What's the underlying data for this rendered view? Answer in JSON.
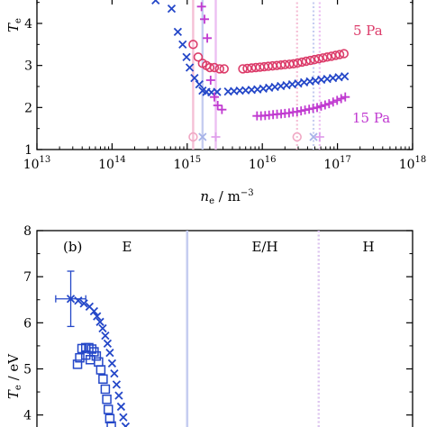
{
  "chart_data": [
    {
      "type": "scatter",
      "panel": "a",
      "xscale": "log",
      "xlim": [
        "1e13",
        "1e18"
      ],
      "ylim": [
        1,
        4.6
      ],
      "grid": false,
      "xlabel": {
        "main": "n",
        "sub": "e",
        "unit": " / m",
        "exp": "−3"
      },
      "ylabel": {
        "main": "T",
        "sub": "e"
      },
      "x_ticks": [
        {
          "value": "1e13",
          "base": "10",
          "exp": "13"
        },
        {
          "value": "1e14",
          "base": "10",
          "exp": "14"
        },
        {
          "value": "1e15",
          "base": "10",
          "exp": "15"
        },
        {
          "value": "1e16",
          "base": "10",
          "exp": "16"
        },
        {
          "value": "1e17",
          "base": "10",
          "exp": "17"
        },
        {
          "value": "1e18",
          "base": "10",
          "exp": "18"
        }
      ],
      "y_ticks": [
        "1",
        "2",
        "3",
        "4"
      ],
      "vertical_lines": [
        {
          "x": "1.2e15",
          "color": "#f5c0d6",
          "style": "solid"
        },
        {
          "x": "1.6e15",
          "color": "#c6cdf0",
          "style": "solid"
        },
        {
          "x": "2.4e15",
          "color": "#ecc0f2",
          "style": "solid"
        },
        {
          "x": "2.9e16",
          "color": "#f5c0d6",
          "style": "dotted"
        },
        {
          "x": "4.8e16",
          "color": "#c6cdf0",
          "style": "dotted"
        },
        {
          "x": "5.8e16",
          "color": "#ecc0f2",
          "style": "dotted"
        }
      ],
      "series": [
        {
          "name": "5 Pa",
          "marker": "circle",
          "color": "#dc3c6a",
          "points": [
            [
              "1.2e15",
              3.5
            ],
            [
              "1.4e15",
              3.2
            ],
            [
              "1.6e15",
              3.05
            ],
            [
              "1.8e15",
              3.0
            ],
            [
              "2.0e15",
              2.95
            ],
            [
              "2.3e15",
              2.95
            ],
            [
              "2.7e15",
              2.92
            ],
            [
              "3.1e15",
              2.92
            ],
            [
              "5.5e15",
              2.92
            ],
            [
              "6.3e15",
              2.93
            ],
            [
              "7.2e15",
              2.94
            ],
            [
              "8.2e15",
              2.95
            ],
            [
              "9.3e15",
              2.96
            ],
            [
              "1.06e16",
              2.97
            ],
            [
              "1.2e16",
              2.98
            ],
            [
              "1.37e16",
              2.99
            ],
            [
              "1.56e16",
              3.0
            ],
            [
              "1.77e16",
              3.01
            ],
            [
              "2.0e16",
              3.02
            ],
            [
              "2.3e16",
              3.03
            ],
            [
              "2.6e16",
              3.04
            ],
            [
              "2.96e16",
              3.06
            ],
            [
              "3.37e16",
              3.08
            ],
            [
              "3.83e16",
              3.1
            ],
            [
              "4.36e16",
              3.12
            ],
            [
              "4.96e16",
              3.14
            ],
            [
              "5.64e16",
              3.16
            ],
            [
              "6.42e16",
              3.18
            ],
            [
              "7.3e16",
              3.2
            ],
            [
              "8.3e16",
              3.22
            ],
            [
              "9.45e16",
              3.24
            ],
            [
              "1.07e17",
              3.26
            ],
            [
              "1.22e17",
              3.28
            ]
          ]
        },
        {
          "name": "",
          "marker": "cross",
          "color": "#2447c8",
          "points": [
            [
              "3.8e14",
              4.55
            ],
            [
              "6.2e14",
              4.35
            ],
            [
              "7.5e14",
              3.8
            ],
            [
              "8.7e14",
              3.5
            ],
            [
              "9.8e14",
              3.2
            ],
            [
              "1.08e15",
              2.95
            ],
            [
              "1.25e15",
              2.7
            ],
            [
              "1.45e15",
              2.55
            ],
            [
              "1.6e15",
              2.4
            ],
            [
              "1.8e15",
              2.37
            ],
            [
              "2.1e15",
              2.36
            ],
            [
              "2.5e15",
              2.37
            ],
            [
              "3.5e15",
              2.38
            ],
            [
              "4.2e15",
              2.39
            ],
            [
              "5.0e15",
              2.4
            ],
            [
              "6.0e15",
              2.41
            ],
            [
              "7.2e15",
              2.42
            ],
            [
              "8.6e15",
              2.43
            ],
            [
              "1.03e16",
              2.45
            ],
            [
              "1.23e16",
              2.47
            ],
            [
              "1.47e16",
              2.49
            ],
            [
              "1.76e16",
              2.51
            ],
            [
              "2.1e16",
              2.53
            ],
            [
              "2.5e16",
              2.55
            ],
            [
              "3.0e16",
              2.57
            ],
            [
              "3.6e16",
              2.6
            ],
            [
              "4.3e16",
              2.62
            ],
            [
              "5.1e16",
              2.64
            ],
            [
              "6.1e16",
              2.66
            ],
            [
              "7.3e16",
              2.68
            ],
            [
              "8.7e16",
              2.7
            ],
            [
              "1.04e17",
              2.72
            ],
            [
              "1.25e17",
              2.74
            ]
          ]
        },
        {
          "name": "15 Pa",
          "marker": "plus",
          "color": "#c03ad0",
          "points": [
            [
              "1.55e15",
              4.4
            ],
            [
              "1.7e15",
              4.1
            ],
            [
              "1.85e15",
              3.65
            ],
            [
              "2.05e15",
              2.65
            ],
            [
              "2.3e15",
              2.25
            ],
            [
              "2.55e15",
              2.05
            ],
            [
              "2.9e15",
              1.95
            ],
            [
              "8.5e15",
              1.8
            ],
            [
              "9.6e15",
              1.8
            ],
            [
              "1.09e16",
              1.81
            ],
            [
              "1.23e16",
              1.82
            ],
            [
              "1.39e16",
              1.83
            ],
            [
              "1.57e16",
              1.84
            ],
            [
              "1.78e16",
              1.85
            ],
            [
              "2.0e16",
              1.86
            ],
            [
              "2.27e16",
              1.87
            ],
            [
              "2.56e16",
              1.89
            ],
            [
              "2.9e16",
              1.9
            ],
            [
              "3.28e16",
              1.92
            ],
            [
              "3.7e16",
              1.94
            ],
            [
              "4.2e16",
              1.96
            ],
            [
              "4.74e16",
              1.98
            ],
            [
              "5.36e16",
              2.0
            ],
            [
              "6.06e16",
              2.03
            ],
            [
              "6.85e16",
              2.06
            ],
            [
              "7.74e16",
              2.09
            ],
            [
              "8.75e16",
              2.13
            ],
            [
              "9.9e16",
              2.17
            ],
            [
              "1.12e17",
              2.21
            ],
            [
              "1.27e17",
              2.25
            ]
          ]
        }
      ],
      "axis_markers": [
        {
          "x": "1.2e15",
          "y": 1.3,
          "marker": "circle",
          "color": "#f0a8c4"
        },
        {
          "x": "1.6e15",
          "y": 1.3,
          "marker": "cross",
          "color": "#a6b2e8"
        },
        {
          "x": "2.4e15",
          "y": 1.3,
          "marker": "plus",
          "color": "#e0a0ec"
        },
        {
          "x": "2.9e16",
          "y": 1.3,
          "marker": "circle",
          "color": "#f0a8c4"
        },
        {
          "x": "4.8e16",
          "y": 1.3,
          "marker": "cross",
          "color": "#a6b2e8"
        },
        {
          "x": "5.8e16",
          "y": 1.3,
          "marker": "plus",
          "color": "#e0a0ec"
        }
      ]
    },
    {
      "type": "scatter",
      "panel": "b",
      "panel_label": "(b)",
      "ylim": [
        3.7,
        8
      ],
      "grid": false,
      "ylabel": {
        "main": "T",
        "sub": "e",
        "unit": " / eV"
      },
      "y_ticks": [
        "4",
        "5",
        "6",
        "7",
        "8"
      ],
      "regions": [
        "E",
        "E/H",
        "H"
      ],
      "vertical_lines": [
        {
          "x": 0.4,
          "color": "#c6cdf0",
          "style": "solid"
        },
        {
          "x": 0.75,
          "color": "#ddc6ef",
          "style": "dotted"
        }
      ],
      "series": [
        {
          "marker": "cross",
          "color": "#2447c8",
          "points": [
            [
              0.09,
              6.52
            ],
            [
              0.11,
              6.48
            ],
            [
              0.125,
              6.42
            ],
            [
              0.14,
              6.35
            ],
            [
              0.152,
              6.25
            ],
            [
              0.16,
              6.14
            ],
            [
              0.168,
              6.02
            ],
            [
              0.175,
              5.88
            ],
            [
              0.182,
              5.72
            ],
            [
              0.188,
              5.55
            ],
            [
              0.194,
              5.35
            ],
            [
              0.2,
              5.12
            ],
            [
              0.206,
              4.9
            ],
            [
              0.212,
              4.66
            ],
            [
              0.218,
              4.42
            ],
            [
              0.224,
              4.18
            ],
            [
              0.23,
              3.95
            ],
            [
              0.236,
              3.75
            ]
          ]
        },
        {
          "marker": "square",
          "color": "#2447c8",
          "points": [
            [
              0.12,
              5.44
            ],
            [
              0.13,
              5.46
            ],
            [
              0.138,
              5.46
            ],
            [
              0.146,
              5.43
            ],
            [
              0.152,
              5.37
            ],
            [
              0.158,
              5.28
            ],
            [
              0.164,
              5.15
            ],
            [
              0.17,
              4.98
            ],
            [
              0.176,
              4.78
            ],
            [
              0.182,
              4.56
            ],
            [
              0.186,
              4.34
            ],
            [
              0.19,
              4.12
            ],
            [
              0.194,
              3.92
            ],
            [
              0.198,
              3.76
            ],
            [
              0.114,
              5.24
            ],
            [
              0.108,
              5.1
            ],
            [
              0.13,
              5.3
            ],
            [
              0.142,
              5.2
            ]
          ]
        }
      ],
      "error_bar": {
        "x": 0.09,
        "y": 6.52,
        "yerr": 0.6,
        "xerr": 0.04
      }
    }
  ]
}
